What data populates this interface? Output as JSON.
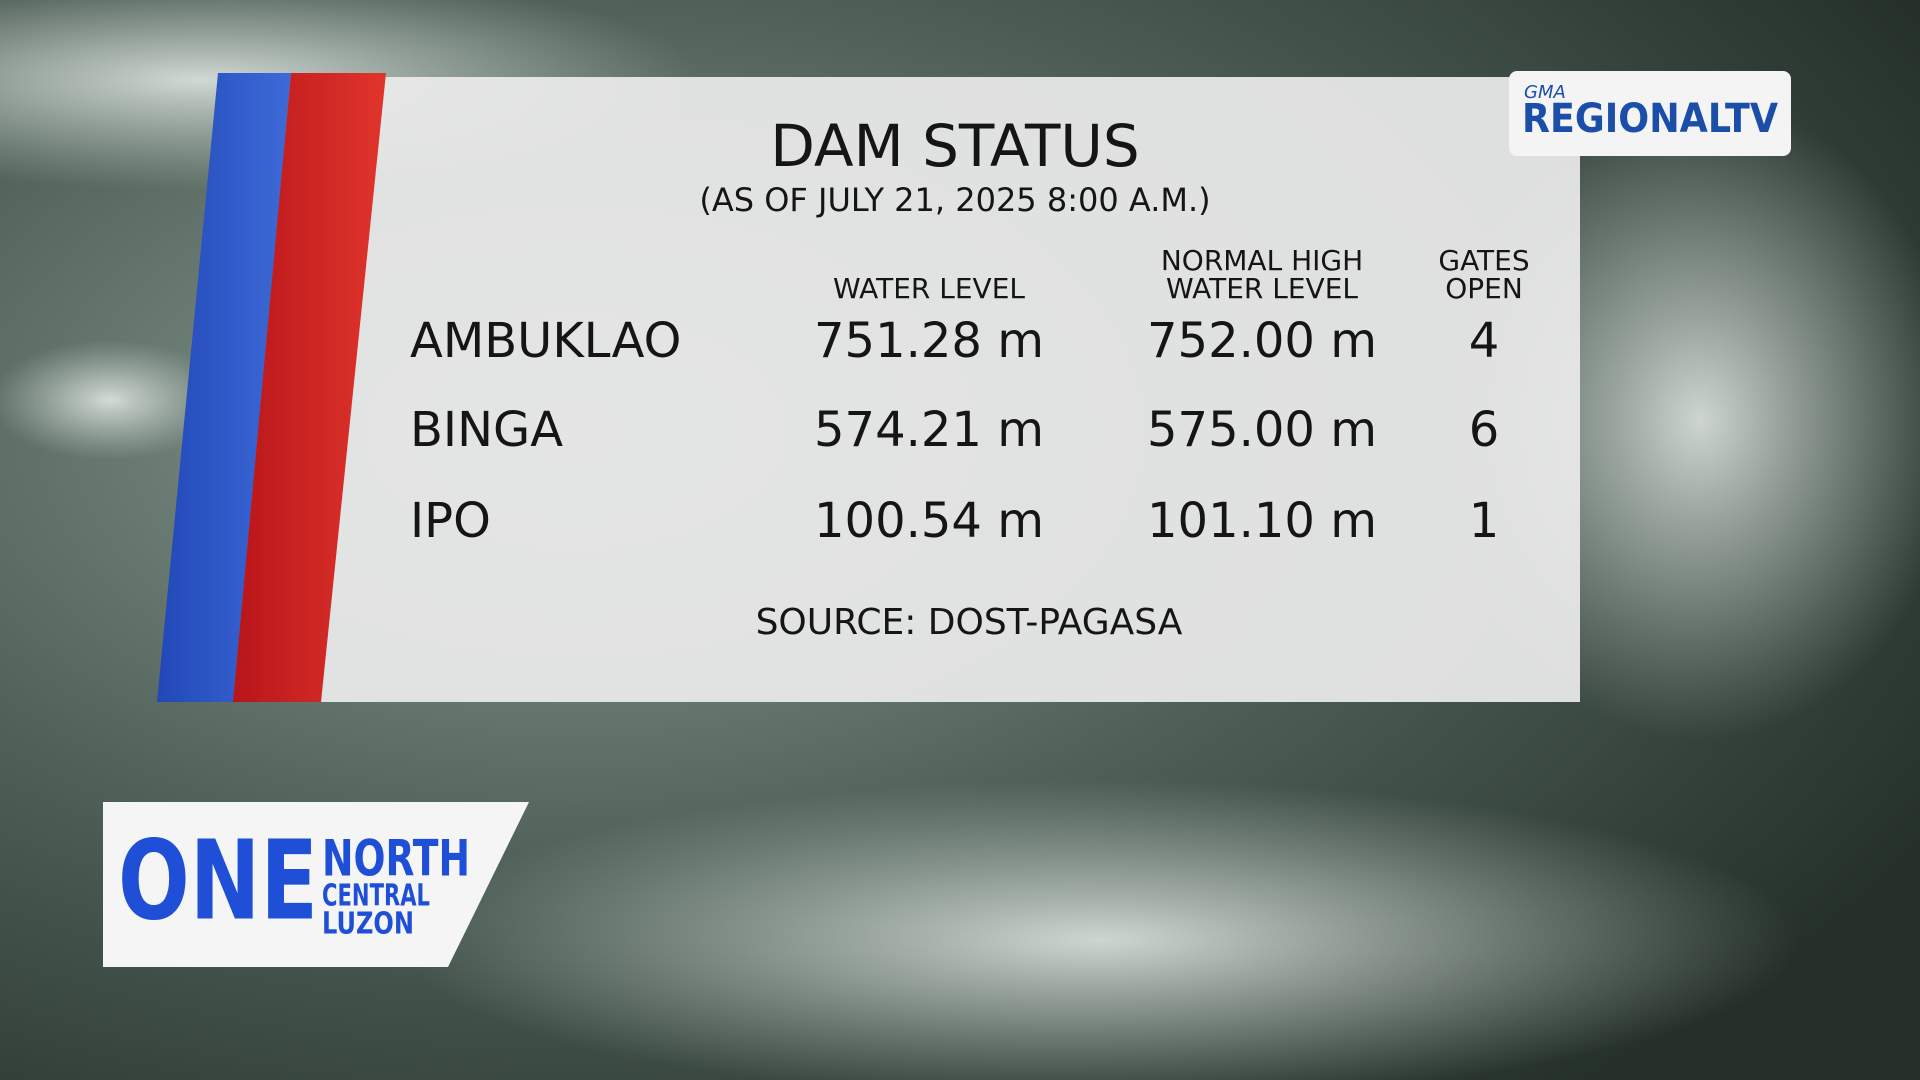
{
  "header": {
    "title": "DAM STATUS",
    "subtitle": "(AS OF JULY 21, 2025 8:00 A.M.)"
  },
  "table": {
    "columns": [
      [
        "WATER LEVEL"
      ],
      [
        "NORMAL HIGH",
        "WATER LEVEL"
      ],
      [
        "GATES",
        "OPEN"
      ]
    ],
    "rows": [
      [
        "AMBUKLAO",
        "751.28 m",
        "752.00 m",
        "4"
      ],
      [
        "BINGA",
        "574.21 m",
        "575.00 m",
        "6"
      ],
      [
        "IPO",
        "100.54 m",
        "101.10 m",
        "1"
      ]
    ]
  },
  "source": "SOURCE: DOST-PAGASA",
  "logos": {
    "network": {
      "small": "GMA",
      "main": "REGIONALTV"
    },
    "program": {
      "big": "ONE",
      "lines": [
        "NORTH",
        "CENTRAL",
        "LUZON"
      ]
    }
  }
}
